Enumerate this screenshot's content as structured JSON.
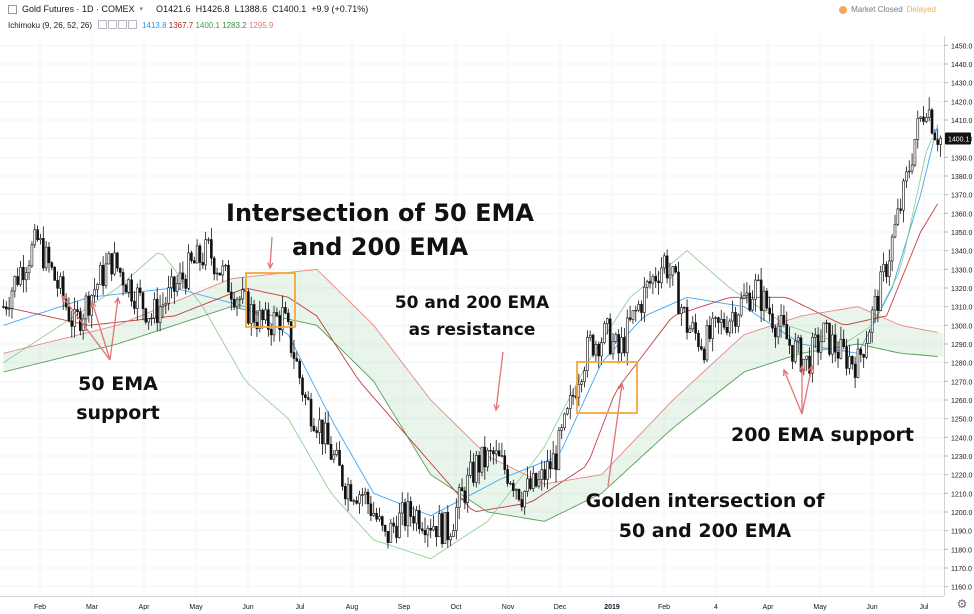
{
  "header": {
    "symbol": "Gold Futures · 1D · COMEX",
    "ohlc": [
      {
        "label": "O",
        "value": "1421.6"
      },
      {
        "label": "H",
        "value": "1426.8"
      },
      {
        "label": "L",
        "value": "1388.6"
      },
      {
        "label": "C",
        "value": "1400.1"
      }
    ],
    "change": "+9.9 (+0.71%)",
    "indicator": "Ichimoku (9, 26, 52, 26)",
    "indicator_values": [
      {
        "value": "1413.8",
        "color": "#2196f3"
      },
      {
        "value": "1367.7",
        "color": "#b71c1c"
      },
      {
        "value": "1400.1",
        "color": "#43a047"
      },
      {
        "value": "1283.2",
        "color": "#388e3c"
      },
      {
        "value": "1295.9",
        "color": "#e57373"
      }
    ],
    "market_status": "Market Closed",
    "delay": "Delayed"
  },
  "annotations": {
    "intersection_line1": "Intersection of 50 EMA",
    "intersection_line2": "and 200 EMA",
    "resistance_line1": "50 and 200 EMA",
    "resistance_line2": "as resistance",
    "support50_line1": "50 EMA",
    "support50_line2": "support",
    "support200": "200 EMA support",
    "golden_line1": "Golden intersection of",
    "golden_line2": "50 and 200 EMA"
  },
  "chart_data": {
    "type": "candlestick",
    "instrument": "Gold Futures",
    "timeframe": "1D",
    "exchange": "COMEX",
    "last_price": "1400.1",
    "ylim": [
      1155,
      1455
    ],
    "y_ticks": [
      1160,
      1170,
      1180,
      1190,
      1200,
      1210,
      1220,
      1230,
      1240,
      1250,
      1260,
      1270,
      1280,
      1290,
      1300,
      1310,
      1320,
      1330,
      1340,
      1350,
      1360,
      1370,
      1380,
      1390,
      1400,
      1410,
      1420,
      1430,
      1440,
      1450
    ],
    "x_ticks": [
      "Feb",
      "Mar",
      "Apr",
      "May",
      "Jun",
      "Jul",
      "Aug",
      "Sep",
      "Oct",
      "Nov",
      "Dec",
      "2019",
      "Feb",
      "4",
      "Apr",
      "May",
      "Jun",
      "Jul"
    ],
    "close_path": [
      [
        0,
        1310
      ],
      [
        6,
        1330
      ],
      [
        12,
        1345
      ],
      [
        18,
        1325
      ],
      [
        25,
        1300
      ],
      [
        32,
        1320
      ],
      [
        38,
        1335
      ],
      [
        45,
        1320
      ],
      [
        52,
        1305
      ],
      [
        58,
        1315
      ],
      [
        65,
        1330
      ],
      [
        72,
        1340
      ],
      [
        78,
        1325
      ],
      [
        85,
        1310
      ],
      [
        92,
        1300
      ],
      [
        98,
        1305
      ],
      [
        102,
        1285
      ],
      [
        106,
        1260
      ],
      [
        110,
        1250
      ],
      [
        114,
        1235
      ],
      [
        120,
        1215
      ],
      [
        126,
        1210
      ],
      [
        130,
        1200
      ],
      [
        134,
        1185
      ],
      [
        138,
        1195
      ],
      [
        144,
        1200
      ],
      [
        150,
        1195
      ],
      [
        156,
        1190
      ],
      [
        160,
        1205
      ],
      [
        166,
        1225
      ],
      [
        172,
        1230
      ],
      [
        178,
        1220
      ],
      [
        182,
        1210
      ],
      [
        188,
        1215
      ],
      [
        194,
        1230
      ],
      [
        198,
        1250
      ],
      [
        202,
        1275
      ],
      [
        206,
        1290
      ],
      [
        212,
        1295
      ],
      [
        216,
        1285
      ],
      [
        220,
        1300
      ],
      [
        226,
        1320
      ],
      [
        232,
        1335
      ],
      [
        236,
        1320
      ],
      [
        240,
        1300
      ],
      [
        246,
        1290
      ],
      [
        252,
        1300
      ],
      [
        258,
        1310
      ],
      [
        264,
        1320
      ],
      [
        270,
        1305
      ],
      [
        276,
        1290
      ],
      [
        282,
        1280
      ],
      [
        288,
        1295
      ],
      [
        294,
        1285
      ],
      [
        300,
        1280
      ],
      [
        304,
        1300
      ],
      [
        308,
        1320
      ],
      [
        312,
        1345
      ],
      [
        316,
        1370
      ],
      [
        320,
        1400
      ],
      [
        324,
        1420
      ],
      [
        327,
        1405
      ],
      [
        329,
        1400
      ]
    ],
    "series": [
      {
        "type": "line",
        "color": "#2196f3",
        "points": [
          [
            0,
            1300
          ],
          [
            30,
            1315
          ],
          [
            60,
            1320
          ],
          [
            85,
            1310
          ],
          [
            100,
            1295
          ],
          [
            115,
            1250
          ],
          [
            130,
            1210
          ],
          [
            150,
            1198
          ],
          [
            175,
            1218
          ],
          [
            195,
            1230
          ],
          [
            210,
            1280
          ],
          [
            225,
            1305
          ],
          [
            240,
            1315
          ],
          [
            260,
            1310
          ],
          [
            280,
            1290
          ],
          [
            300,
            1285
          ],
          [
            312,
            1320
          ],
          [
            322,
            1370
          ],
          [
            329,
            1413.8
          ]
        ]
      },
      {
        "type": "line",
        "color": "#b71c1c",
        "points": [
          [
            0,
            1310
          ],
          [
            30,
            1300
          ],
          [
            60,
            1305
          ],
          [
            85,
            1320
          ],
          [
            100,
            1315
          ],
          [
            110,
            1305
          ],
          [
            125,
            1270
          ],
          [
            145,
            1235
          ],
          [
            165,
            1200
          ],
          [
            185,
            1205
          ],
          [
            205,
            1225
          ],
          [
            215,
            1265
          ],
          [
            235,
            1305
          ],
          [
            255,
            1315
          ],
          [
            275,
            1315
          ],
          [
            295,
            1300
          ],
          [
            310,
            1305
          ],
          [
            322,
            1350
          ],
          [
            329,
            1367.7
          ]
        ]
      },
      {
        "type": "line",
        "color": "#81c784",
        "points": [
          [
            0,
            1280
          ],
          [
            20,
            1300
          ],
          [
            40,
            1320
          ],
          [
            55,
            1340
          ],
          [
            70,
            1310
          ],
          [
            85,
            1270
          ],
          [
            100,
            1250
          ],
          [
            115,
            1210
          ],
          [
            130,
            1185
          ],
          [
            150,
            1175
          ],
          [
            170,
            1195
          ],
          [
            190,
            1235
          ],
          [
            205,
            1280
          ],
          [
            220,
            1315
          ],
          [
            240,
            1340
          ],
          [
            255,
            1320
          ],
          [
            275,
            1300
          ],
          [
            295,
            1290
          ],
          [
            305,
            1300
          ],
          [
            315,
            1330
          ],
          [
            325,
            1400
          ],
          [
            329,
            1400.1
          ]
        ]
      },
      {
        "type": "line",
        "color": "#e57373",
        "points": [
          [
            0,
            1285
          ],
          [
            40,
            1300
          ],
          [
            80,
            1325
          ],
          [
            110,
            1330
          ],
          [
            130,
            1300
          ],
          [
            150,
            1260
          ],
          [
            170,
            1230
          ],
          [
            190,
            1215
          ],
          [
            210,
            1220
          ],
          [
            235,
            1260
          ],
          [
            260,
            1295
          ],
          [
            280,
            1305
          ],
          [
            300,
            1310
          ],
          [
            315,
            1300
          ],
          [
            329,
            1295.9
          ]
        ]
      },
      {
        "type": "line",
        "color": "#388e3c",
        "points": [
          [
            0,
            1275
          ],
          [
            40,
            1290
          ],
          [
            80,
            1310
          ],
          [
            110,
            1300
          ],
          [
            130,
            1270
          ],
          [
            150,
            1220
          ],
          [
            170,
            1200
          ],
          [
            190,
            1195
          ],
          [
            210,
            1210
          ],
          [
            235,
            1245
          ],
          [
            260,
            1275
          ],
          [
            280,
            1285
          ],
          [
            300,
            1290
          ],
          [
            315,
            1285
          ],
          [
            329,
            1283.2
          ]
        ]
      }
    ]
  }
}
